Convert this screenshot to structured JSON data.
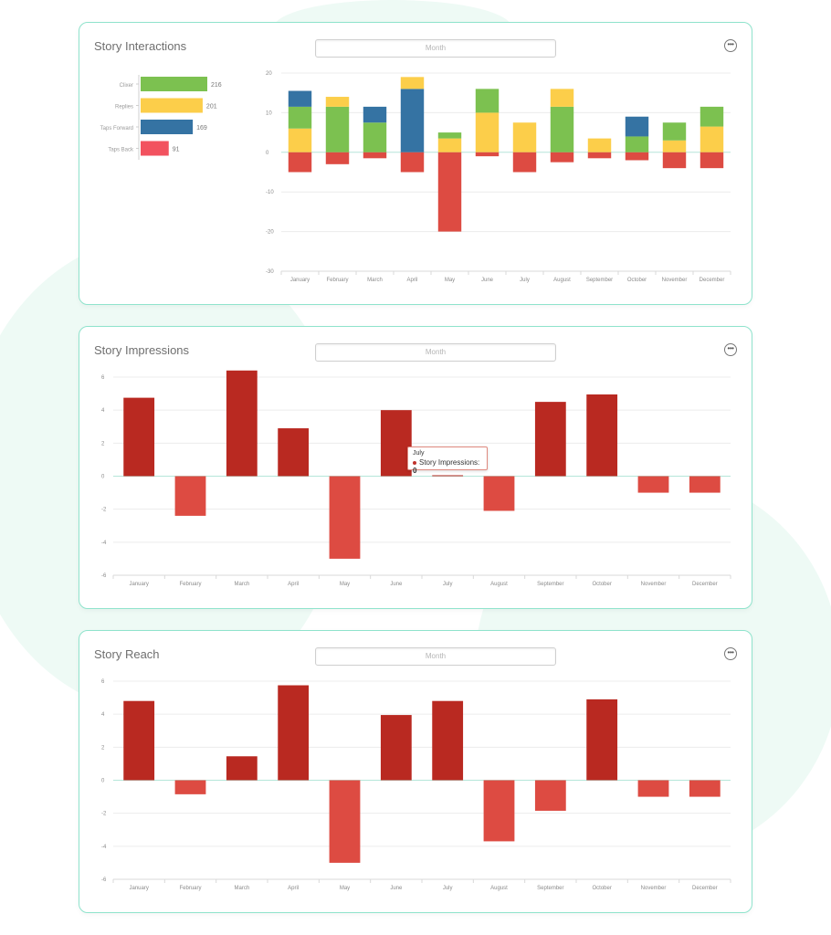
{
  "colors": {
    "card_border": "#8fe3cc",
    "clicks": "#7cc150",
    "replies": "#fcce4a",
    "taps_forward": "#3573a3",
    "taps_back": "#f2525f",
    "negative": "#dd4b42",
    "positive": "#b92921"
  },
  "icons": {
    "more": "more-horizontal-icon"
  },
  "interactions": {
    "title": "Story Interactions",
    "period_value": "Month",
    "summary": [
      {
        "label": "Clixer",
        "value": 216,
        "color": "#7cc150"
      },
      {
        "label": "Replies",
        "value": 201,
        "color": "#fcce4a"
      },
      {
        "label": "Taps Forward",
        "value": 169,
        "color": "#3573a3"
      },
      {
        "label": "Taps Back",
        "value": 91,
        "color": "#f2525f"
      }
    ]
  },
  "impressions": {
    "title": "Story Impressions",
    "period_value": "Month",
    "tooltip": {
      "month": "July",
      "label": "Story Impressions:",
      "value": "0"
    }
  },
  "reach": {
    "title": "Story Reach",
    "period_value": "Month"
  },
  "chart_data": [
    {
      "type": "bar",
      "title": "Story Interactions",
      "stacked": true,
      "categories": [
        "January",
        "February",
        "March",
        "April",
        "May",
        "June",
        "July",
        "August",
        "September",
        "October",
        "November",
        "December"
      ],
      "ylim": [
        -30,
        20
      ],
      "yticks": [
        20,
        10,
        0,
        -10,
        -20,
        -30
      ],
      "grid": true,
      "series": [
        {
          "color": "#fcce4a",
          "values": [
            6,
            0,
            0,
            0,
            3.5,
            10,
            7.5,
            0,
            3.5,
            0,
            3,
            6.5
          ]
        },
        {
          "color": "#7cc150",
          "values": [
            5.5,
            11.5,
            7.5,
            0,
            1.5,
            6,
            0,
            11.5,
            0,
            4,
            4.5,
            5
          ]
        },
        {
          "color": "#3573a3",
          "values": [
            4,
            0,
            4,
            16,
            0,
            0,
            0,
            0,
            0,
            5,
            0,
            0
          ]
        },
        {
          "color": "#fcce4a",
          "values": [
            0,
            2.5,
            0,
            3,
            0,
            0,
            0,
            4.5,
            0,
            0,
            0,
            0
          ]
        },
        {
          "color": "#dd4b42",
          "values": [
            -5,
            -3,
            -1.5,
            -5,
            -20,
            -1,
            -5,
            -2.5,
            -1.5,
            -2,
            -4,
            -4
          ]
        }
      ]
    },
    {
      "type": "bar",
      "title": "Story Impressions",
      "categories": [
        "January",
        "February",
        "March",
        "April",
        "May",
        "June",
        "July",
        "August",
        "September",
        "October",
        "November",
        "December"
      ],
      "values": [
        4.75,
        -2.4,
        6.4,
        2.9,
        -5,
        4,
        0,
        -2.1,
        4.5,
        4.95,
        -1,
        -1
      ],
      "ylim": [
        -6,
        6
      ],
      "yticks": [
        6,
        4,
        2,
        0,
        -2,
        -4,
        -6
      ],
      "grid": true
    },
    {
      "type": "bar",
      "title": "Story Reach",
      "categories": [
        "January",
        "February",
        "March",
        "April",
        "May",
        "June",
        "July",
        "August",
        "September",
        "October",
        "November",
        "December"
      ],
      "values": [
        4.8,
        -0.85,
        1.45,
        5.75,
        -5,
        3.95,
        4.8,
        -3.7,
        -1.85,
        4.9,
        -1,
        -1
      ],
      "ylim": [
        -6,
        6
      ],
      "yticks": [
        6,
        4,
        2,
        0,
        -2,
        -4,
        -6
      ],
      "grid": true
    }
  ]
}
